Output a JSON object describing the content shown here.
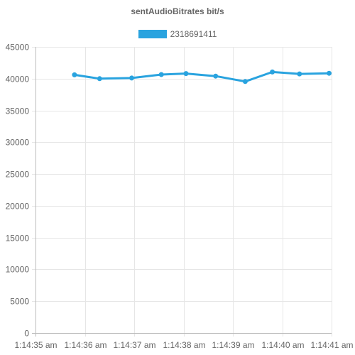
{
  "chart_data": {
    "type": "line",
    "title": "sentAudioBitrates bit/s",
    "x_tick_labels": [
      "1:14:35 am",
      "1:14:36 am",
      "1:14:37 am",
      "1:14:38 am",
      "1:14:39 am",
      "1:14:40 am",
      "1:14:41 am"
    ],
    "x_tick_seconds": [
      35,
      36,
      37,
      38,
      39,
      40,
      41
    ],
    "y_ticks": [
      0,
      5000,
      10000,
      15000,
      20000,
      25000,
      30000,
      35000,
      40000,
      45000
    ],
    "ylim": [
      0,
      45000
    ],
    "xlim": [
      "1:14:35 am",
      "1:14:41 am"
    ],
    "grid": true,
    "legend_position": "top",
    "series": [
      {
        "name": "2318691411",
        "color": "#29a3df",
        "x": [
          "1:14:35.79 am",
          "1:14:36.30 am",
          "1:14:36.95 am",
          "1:14:37.55 am",
          "1:14:38.05 am",
          "1:14:38.65 am",
          "1:14:39.25 am",
          "1:14:39.80 am",
          "1:14:40.35 am",
          "1:14:40.95 am"
        ],
        "x_seconds": [
          35.79,
          36.3,
          36.95,
          37.55,
          38.05,
          38.65,
          39.25,
          39.8,
          40.35,
          40.95
        ],
        "values": [
          40600,
          40000,
          40100,
          40650,
          40800,
          40400,
          39550,
          41050,
          40750,
          40850
        ]
      }
    ]
  }
}
